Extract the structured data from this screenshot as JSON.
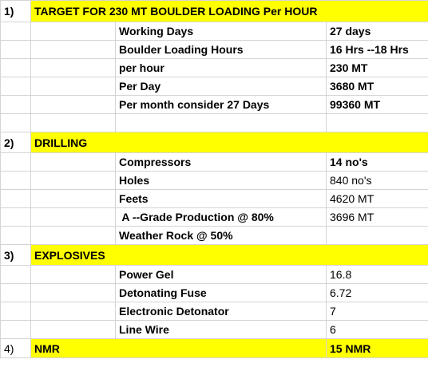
{
  "sections": [
    {
      "number": "1)",
      "title": "TARGET FOR 230 MT  BOULDER LOADING Per HOUR",
      "rows": [
        {
          "label": "Working Days",
          "value": "27 days"
        },
        {
          "label": "Boulder Loading Hours",
          "value": "16 Hrs --18 Hrs"
        },
        {
          "label": "per hour",
          "value": "230 MT"
        },
        {
          "label": "Per Day",
          "value": "3680 MT"
        },
        {
          "label": "Per month  consider 27 Days",
          "value": "99360 MT"
        }
      ]
    },
    {
      "number": "2)",
      "title": "DRILLING",
      "rows": [
        {
          "label": "Compressors",
          "value": "14 no's"
        },
        {
          "label": "Holes",
          "value": "840 no's"
        },
        {
          "label": "Feets",
          "value": "4620 MT"
        },
        {
          "label": " A --Grade Production @ 80%",
          "value": "3696 MT"
        },
        {
          "label": "Weather Rock @ 50%",
          "value": ""
        }
      ]
    },
    {
      "number": "3)",
      "title": "EXPLOSIVES",
      "rows": [
        {
          "label": "Power Gel",
          "value": "16.8"
        },
        {
          "label": "Detonating Fuse",
          "value": "6.72"
        },
        {
          "label": "Electronic Detonator",
          "value": "7"
        },
        {
          "label": "Line Wire",
          "value": "6"
        }
      ]
    },
    {
      "number": "4)",
      "title": "NMR",
      "value": "15 NMR"
    }
  ]
}
